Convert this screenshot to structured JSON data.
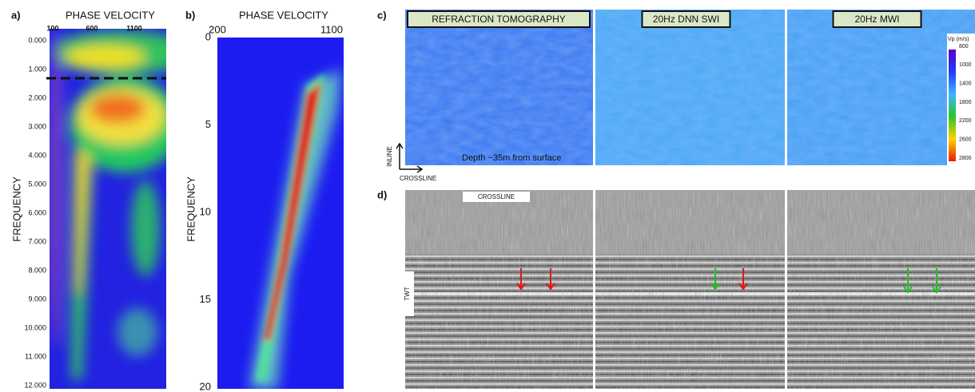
{
  "panel_a": {
    "label": "a)",
    "x_title": "PHASE VELOCITY",
    "y_title": "FREQUENCY",
    "x_ticks": [
      "100",
      "600",
      "1100"
    ],
    "y_ticks": [
      "0.000",
      "1.000",
      "2.000",
      "3.000",
      "4.000",
      "5.000",
      "6.000",
      "7.000",
      "8.000",
      "9.000",
      "10.000",
      "11.000",
      "12.000"
    ]
  },
  "panel_b": {
    "label": "b)",
    "x_title": "PHASE VELOCITY",
    "y_title": "FREQUENCY",
    "x_ticks": [
      "200",
      "1100"
    ],
    "y_ticks": [
      "0",
      "5",
      "10",
      "15",
      "20"
    ]
  },
  "panel_c": {
    "label": "c)",
    "titles": [
      "REFRACTION TOMOGRAPHY",
      "20Hz DNN SWI",
      "20Hz MWI"
    ],
    "caption": "Depth ~35m from surface",
    "inline": "INLINE",
    "crossline": "CROSSLINE",
    "colorbar": {
      "title": "Vp (m/s)",
      "ticks": [
        "800",
        "1000",
        "1400",
        "1800",
        "2200",
        "2600",
        "2800"
      ]
    }
  },
  "panel_d": {
    "label": "d)",
    "crossline": "CROSSLINE",
    "twt": "TWT"
  }
}
